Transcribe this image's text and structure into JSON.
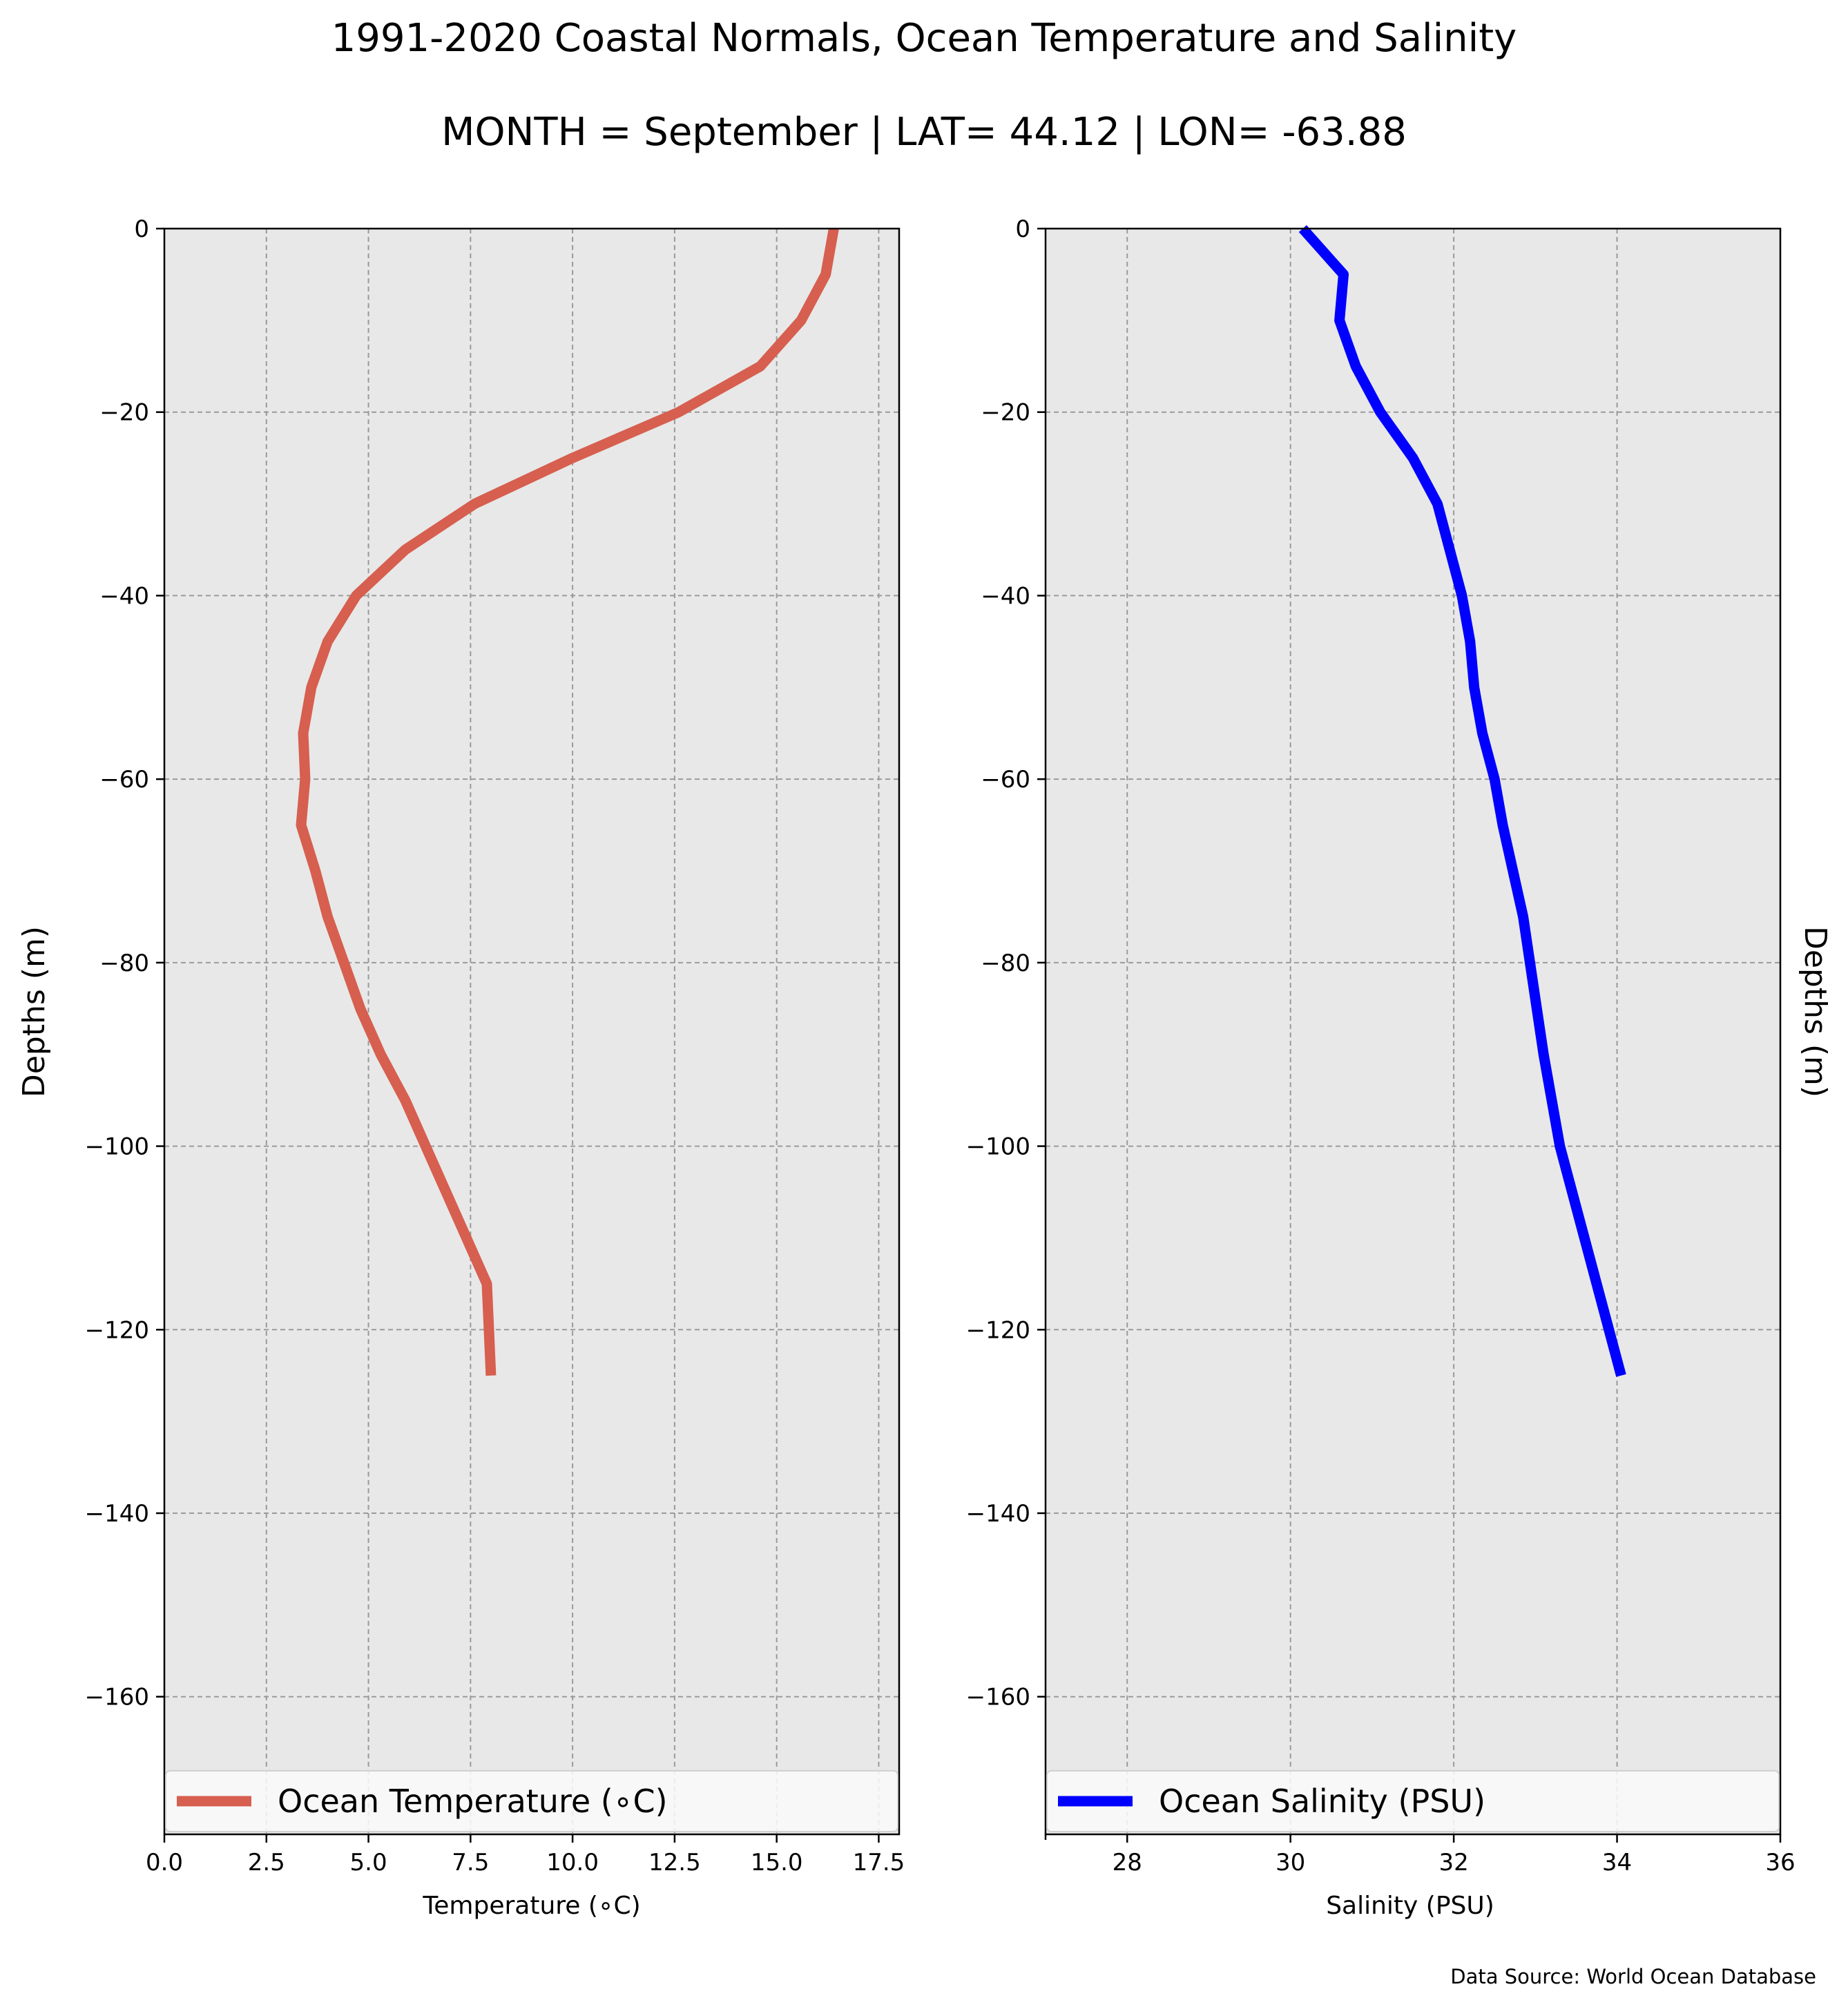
{
  "title": "1991-2020 Coastal Normals, Ocean Temperature and Salinity",
  "subtitle": "MONTH = September | LAT= 44.12 | LON= -63.88",
  "source": "Data Source: World Ocean Database",
  "chart_data": [
    {
      "type": "line",
      "xlabel": "Temperature (∘C)",
      "ylabel": "Depths (m)",
      "xlim": [
        0,
        18
      ],
      "ylim": [
        -175,
        0
      ],
      "xticks": [
        0,
        2.5,
        5,
        7.5,
        10,
        12.5,
        15,
        17.5
      ],
      "xtick_labels": [
        "0.0",
        "2.5",
        "5.0",
        "7.5",
        "10.0",
        "12.5",
        "15.0",
        "17.5"
      ],
      "yticks": [
        0,
        -20,
        -40,
        -60,
        -80,
        -100,
        -120,
        -140,
        -160
      ],
      "ytick_labels": [
        "0",
        "−20",
        "−40",
        "−60",
        "−80",
        "−100",
        "−120",
        "−140",
        "−160"
      ],
      "grid": true,
      "legend_position": "bottom",
      "series": [
        {
          "name": "Ocean Temperature (∘C)",
          "color": "#d65f4f",
          "x": [
            16.4,
            16.2,
            15.6,
            14.6,
            12.6,
            10.0,
            7.6,
            5.9,
            4.7,
            4.0,
            3.6,
            3.4,
            3.45,
            3.35,
            3.7,
            4.0,
            4.4,
            4.8,
            5.3,
            5.9,
            6.4,
            6.9,
            7.4,
            7.9,
            8.0
          ],
          "y": [
            0,
            -5,
            -10,
            -15,
            -20,
            -25,
            -30,
            -35,
            -40,
            -45,
            -50,
            -55,
            -60,
            -65,
            -70,
            -75,
            -80,
            -85,
            -90,
            -95,
            -100,
            -105,
            -110,
            -115,
            -125
          ]
        }
      ]
    },
    {
      "type": "line",
      "xlabel": "Salinity (PSU)",
      "ylabel": "Depths (m)",
      "xlim": [
        27,
        36
      ],
      "ylim": [
        -175,
        0
      ],
      "xticks": [
        28,
        30,
        32,
        34,
        36
      ],
      "xtick_labels": [
        "28",
        "30",
        "32",
        "34",
        "36"
      ],
      "yticks": [
        0,
        -20,
        -40,
        -60,
        -80,
        -100,
        -120,
        -140,
        -160
      ],
      "ytick_labels": [
        "0",
        "−20",
        "−40",
        "−60",
        "−80",
        "−100",
        "−120",
        "−140",
        "−160"
      ],
      "grid": true,
      "legend_position": "bottom",
      "series": [
        {
          "name": "Ocean Salinity (PSU)",
          "color": "#0000ff",
          "x": [
            30.15,
            30.65,
            30.6,
            30.8,
            31.1,
            31.5,
            31.8,
            31.95,
            32.1,
            32.2,
            32.25,
            32.35,
            32.5,
            32.6,
            32.85,
            33.1,
            33.3,
            34.05
          ],
          "y": [
            0,
            -5,
            -10,
            -15,
            -20,
            -25,
            -30,
            -35,
            -40,
            -45,
            -50,
            -55,
            -60,
            -65,
            -75,
            -90,
            -100,
            -125
          ]
        }
      ]
    }
  ]
}
